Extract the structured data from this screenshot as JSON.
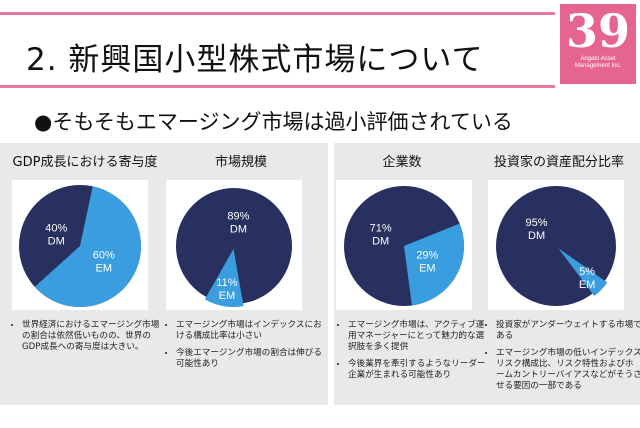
{
  "slide": {
    "title": "2. 新興国小型株式市場について",
    "logo_number": "39",
    "logo_text_line1": "Arigato Asset",
    "logo_text_line2": "Management Inc.",
    "subheading": "●そもそもエマージング市場は過小評価されている"
  },
  "colors": {
    "dark_navy": "#27305e",
    "light_blue": "#3a9ddf",
    "pink": "#e6658f"
  },
  "chart_data": [
    {
      "type": "pie",
      "title": "GDP成長における寄与度",
      "slices": [
        {
          "label": "DM",
          "value": 40,
          "display": "40%"
        },
        {
          "label": "EM",
          "value": 60,
          "display": "60%"
        }
      ],
      "notes": [
        "世界経済におけるエマージング市場の割合は依然低いものの、世界のGDP成長への寄与度は大きい。"
      ]
    },
    {
      "type": "pie",
      "title": "市場規模",
      "slices": [
        {
          "label": "DM",
          "value": 89,
          "display": "89%"
        },
        {
          "label": "EM",
          "value": 11,
          "display": "11%"
        }
      ],
      "notes": [
        "エマージング市場はインデックスにおける構成比率は小さい",
        "今後エマージング市場の割合は伸びる可能性あり"
      ]
    },
    {
      "type": "pie",
      "title": "企業数",
      "slices": [
        {
          "label": "DM",
          "value": 71,
          "display": "71%"
        },
        {
          "label": "EM",
          "value": 29,
          "display": "29%"
        }
      ],
      "notes": [
        "エマージング市場は、アクティブ運用マネージャーにとって魅力的な選択肢を多く提供",
        "今後業界を牽引するようなリーダー企業が生まれる可能性あり"
      ]
    },
    {
      "type": "pie",
      "title": "投資家の資産配分比率",
      "slices": [
        {
          "label": "DM",
          "value": 95,
          "display": "95%"
        },
        {
          "label": "EM",
          "value": 5,
          "display": "5%"
        }
      ],
      "notes": [
        "投資家がアンダーウェイトする市場である",
        "エマージング市場の低いインデックスリスク構成比、リスク特性およびホームカントリーバイアスなどがそうさせる要因の一部である"
      ]
    }
  ]
}
